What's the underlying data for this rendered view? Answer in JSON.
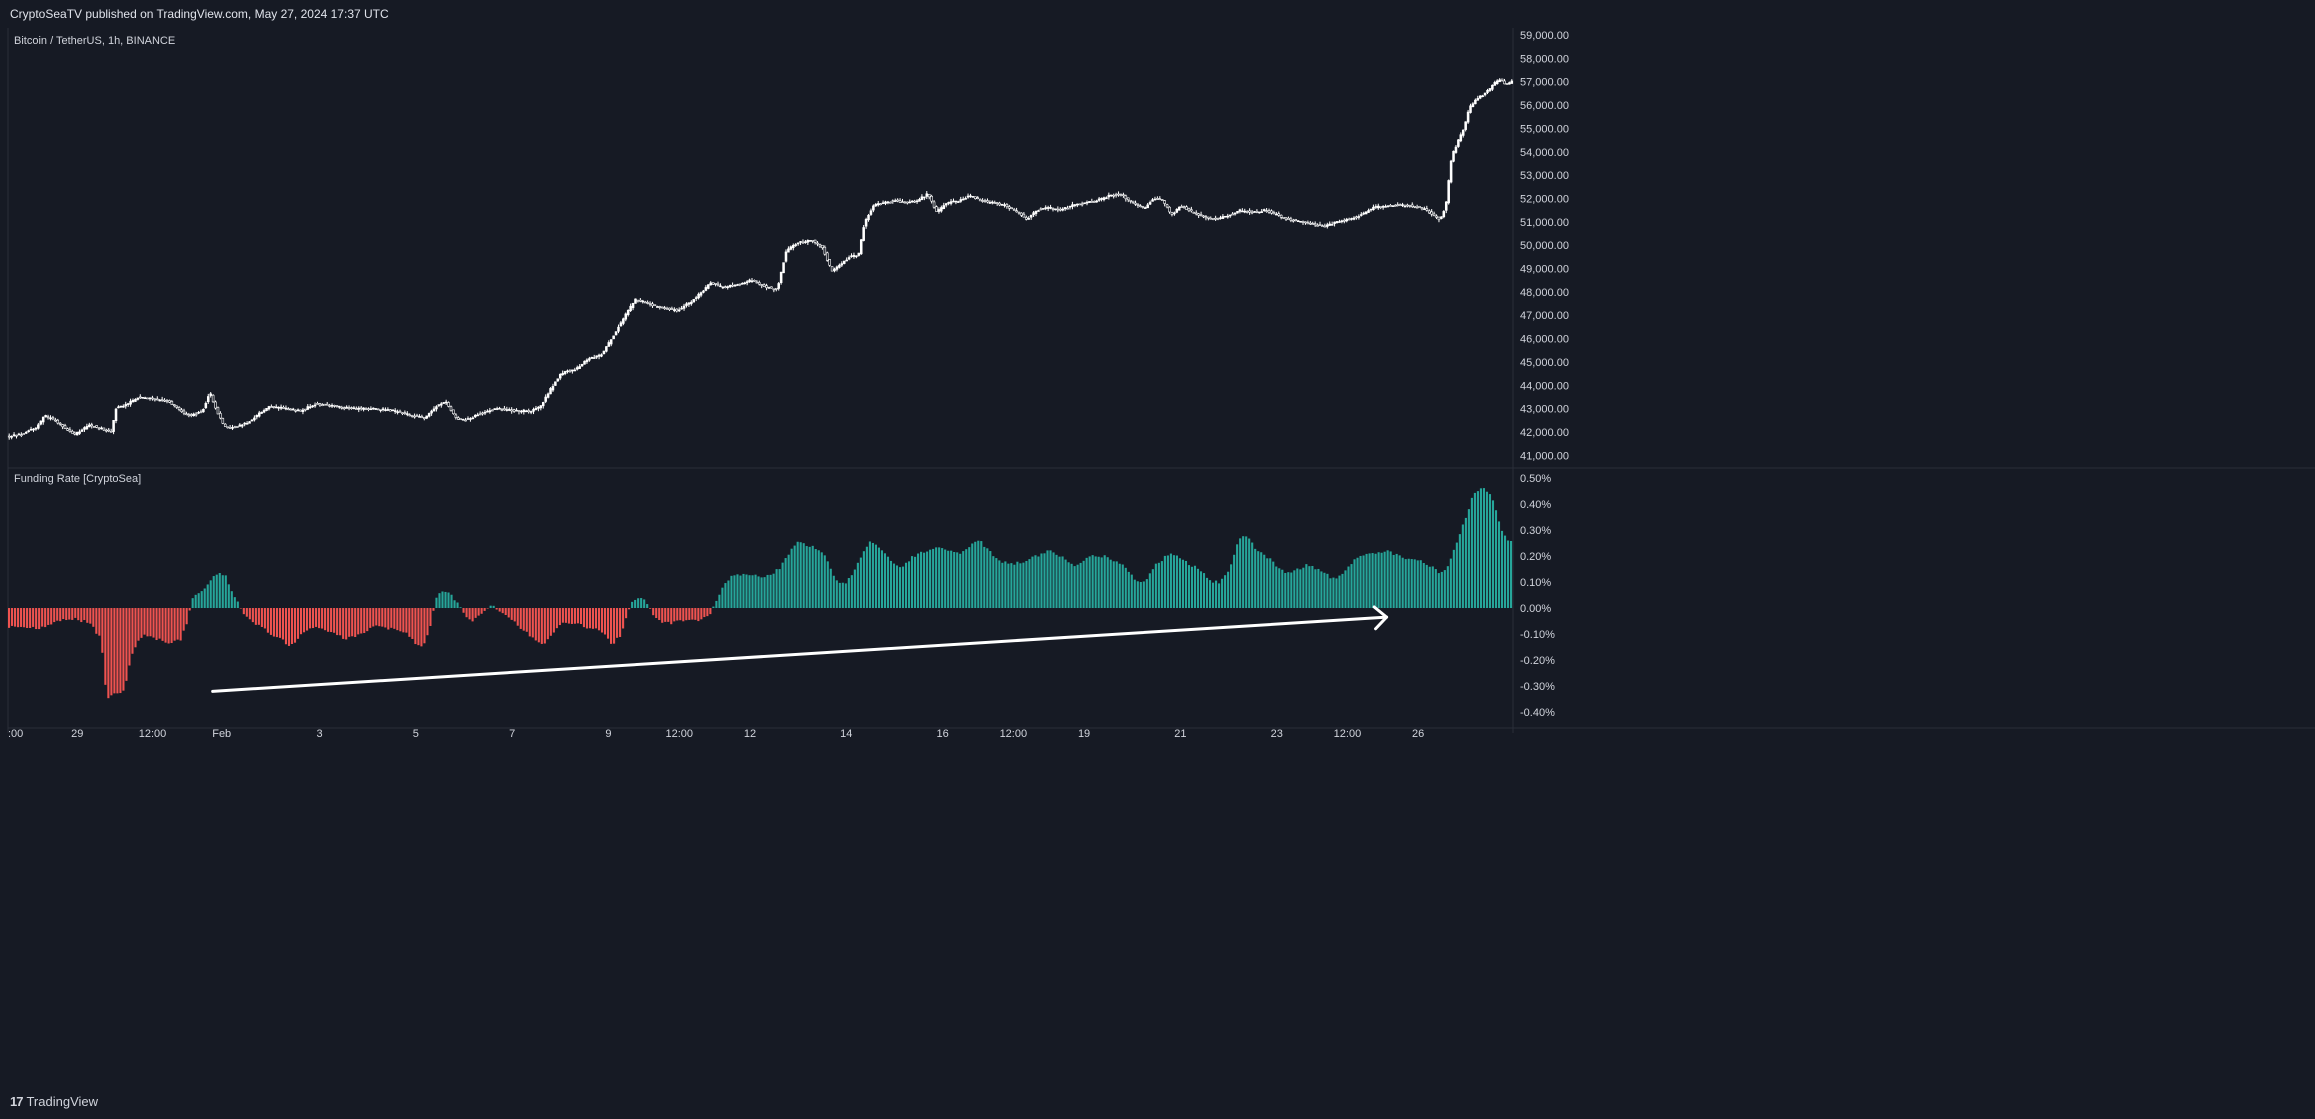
{
  "header": {
    "publisher_line": "CryptoSeaTV published on TradingView.com, May 27, 2024 17:37 UTC"
  },
  "footer": {
    "logo_mark": "17",
    "logo_text": "TradingView"
  },
  "colors": {
    "background": "#161a24",
    "pane_border": "#2a2e39",
    "text": "#d1d4dc",
    "candle": "#ffffff",
    "funding_positive": "#26a69a",
    "funding_negative": "#ef5350",
    "arrow": "#ffffff"
  },
  "chart_data": [
    {
      "type": "candlestick",
      "title": "Bitcoin / TetherUS, 1h, BINANCE",
      "ylim": [
        40500,
        59300
      ],
      "y_ticks": [
        "59,000.00",
        "58,000.00",
        "57,000.00",
        "56,000.00",
        "55,000.00",
        "54,000.00",
        "53,000.00",
        "52,000.00",
        "51,000.00",
        "50,000.00",
        "49,000.00",
        "48,000.00",
        "47,000.00",
        "46,000.00",
        "45,000.00",
        "44,000.00",
        "43,000.00",
        "42,000.00",
        "41,000.00"
      ],
      "y_tick_values": [
        59000,
        58000,
        57000,
        56000,
        55000,
        54000,
        53000,
        52000,
        51000,
        50000,
        49000,
        48000,
        47000,
        46000,
        45000,
        44000,
        43000,
        42000,
        41000
      ],
      "x_ticks": [
        ":00",
        "29",
        "12:00",
        "Feb",
        "3",
        "5",
        "7",
        "9",
        "12:00",
        "12",
        "14",
        "16",
        "12:00",
        "19",
        "21",
        "23",
        "12:00",
        "26"
      ],
      "x_tick_positions": [
        0.0,
        0.046,
        0.096,
        0.142,
        0.207,
        0.271,
        0.335,
        0.399,
        0.446,
        0.493,
        0.557,
        0.621,
        0.668,
        0.715,
        0.779,
        0.843,
        0.89,
        0.937
      ],
      "price_path": [
        [
          0.0,
          41800
        ],
        [
          0.01,
          41900
        ],
        [
          0.02,
          42200
        ],
        [
          0.025,
          42700
        ],
        [
          0.032,
          42500
        ],
        [
          0.04,
          42100
        ],
        [
          0.045,
          41900
        ],
        [
          0.055,
          42300
        ],
        [
          0.065,
          42100
        ],
        [
          0.07,
          42000
        ],
        [
          0.072,
          43000
        ],
        [
          0.08,
          43200
        ],
        [
          0.088,
          43500
        ],
        [
          0.098,
          43400
        ],
        [
          0.108,
          43300
        ],
        [
          0.115,
          42900
        ],
        [
          0.122,
          42700
        ],
        [
          0.13,
          42900
        ],
        [
          0.135,
          43700
        ],
        [
          0.14,
          42800
        ],
        [
          0.145,
          42200
        ],
        [
          0.152,
          42200
        ],
        [
          0.16,
          42400
        ],
        [
          0.168,
          42800
        ],
        [
          0.175,
          43100
        ],
        [
          0.185,
          43000
        ],
        [
          0.195,
          42900
        ],
        [
          0.205,
          43200
        ],
        [
          0.218,
          43100
        ],
        [
          0.23,
          43000
        ],
        [
          0.245,
          43000
        ],
        [
          0.258,
          42900
        ],
        [
          0.27,
          42700
        ],
        [
          0.278,
          42600
        ],
        [
          0.285,
          43100
        ],
        [
          0.292,
          43300
        ],
        [
          0.298,
          42600
        ],
        [
          0.305,
          42500
        ],
        [
          0.315,
          42800
        ],
        [
          0.325,
          43000
        ],
        [
          0.338,
          42900
        ],
        [
          0.348,
          42900
        ],
        [
          0.355,
          43100
        ],
        [
          0.36,
          43700
        ],
        [
          0.368,
          44500
        ],
        [
          0.378,
          44700
        ],
        [
          0.386,
          45100
        ],
        [
          0.395,
          45300
        ],
        [
          0.402,
          46000
        ],
        [
          0.41,
          46900
        ],
        [
          0.418,
          47700
        ],
        [
          0.426,
          47500
        ],
        [
          0.436,
          47300
        ],
        [
          0.446,
          47200
        ],
        [
          0.455,
          47600
        ],
        [
          0.462,
          48000
        ],
        [
          0.468,
          48400
        ],
        [
          0.475,
          48200
        ],
        [
          0.485,
          48300
        ],
        [
          0.495,
          48500
        ],
        [
          0.505,
          48200
        ],
        [
          0.512,
          48100
        ],
        [
          0.518,
          49800
        ],
        [
          0.525,
          50100
        ],
        [
          0.535,
          50200
        ],
        [
          0.542,
          49900
        ],
        [
          0.548,
          48900
        ],
        [
          0.554,
          49200
        ],
        [
          0.56,
          49500
        ],
        [
          0.566,
          49600
        ],
        [
          0.57,
          51000
        ],
        [
          0.576,
          51700
        ],
        [
          0.582,
          51800
        ],
        [
          0.59,
          51900
        ],
        [
          0.598,
          51800
        ],
        [
          0.605,
          51900
        ],
        [
          0.612,
          52200
        ],
        [
          0.618,
          51400
        ],
        [
          0.624,
          51800
        ],
        [
          0.632,
          51900
        ],
        [
          0.64,
          52100
        ],
        [
          0.648,
          51900
        ],
        [
          0.656,
          51800
        ],
        [
          0.664,
          51700
        ],
        [
          0.672,
          51400
        ],
        [
          0.678,
          51100
        ],
        [
          0.684,
          51500
        ],
        [
          0.692,
          51600
        ],
        [
          0.7,
          51500
        ],
        [
          0.708,
          51700
        ],
        [
          0.716,
          51800
        ],
        [
          0.724,
          51900
        ],
        [
          0.732,
          52100
        ],
        [
          0.74,
          52200
        ],
        [
          0.748,
          51800
        ],
        [
          0.756,
          51600
        ],
        [
          0.762,
          52000
        ],
        [
          0.768,
          51900
        ],
        [
          0.774,
          51300
        ],
        [
          0.78,
          51700
        ],
        [
          0.788,
          51400
        ],
        [
          0.796,
          51200
        ],
        [
          0.804,
          51100
        ],
        [
          0.812,
          51300
        ],
        [
          0.82,
          51500
        ],
        [
          0.828,
          51400
        ],
        [
          0.836,
          51500
        ],
        [
          0.844,
          51300
        ],
        [
          0.852,
          51100
        ],
        [
          0.86,
          51000
        ],
        [
          0.868,
          50900
        ],
        [
          0.876,
          50800
        ],
        [
          0.884,
          51000
        ],
        [
          0.892,
          51100
        ],
        [
          0.9,
          51300
        ],
        [
          0.908,
          51600
        ],
        [
          0.916,
          51700
        ],
        [
          0.924,
          51700
        ],
        [
          0.932,
          51700
        ],
        [
          0.94,
          51600
        ],
        [
          0.948,
          51300
        ],
        [
          0.952,
          51100
        ],
        [
          0.956,
          51600
        ],
        [
          0.96,
          53800
        ],
        [
          0.964,
          54400
        ],
        [
          0.968,
          55000
        ],
        [
          0.972,
          55900
        ],
        [
          0.976,
          56200
        ],
        [
          0.98,
          56400
        ],
        [
          0.984,
          56600
        ],
        [
          0.988,
          56900
        ],
        [
          0.992,
          57100
        ],
        [
          0.996,
          56900
        ],
        [
          1.0,
          57000
        ]
      ]
    },
    {
      "type": "bar",
      "title": "Funding Rate [CryptoSea]",
      "ylim": [
        -0.0043,
        0.0053
      ],
      "y_ticks": [
        "0.50%",
        "0.40%",
        "0.30%",
        "0.20%",
        "0.10%",
        "0.00%",
        "-0.10%",
        "-0.20%",
        "-0.30%",
        "-0.40%"
      ],
      "y_tick_values": [
        0.005,
        0.004,
        0.003,
        0.002,
        0.001,
        0.0,
        -0.001,
        -0.002,
        -0.003,
        -0.004
      ],
      "bar_profile": [
        [
          0.0,
          -0.0007
        ],
        [
          0.02,
          -0.0008
        ],
        [
          0.035,
          -0.0005
        ],
        [
          0.045,
          -0.0004
        ],
        [
          0.055,
          -0.0006
        ],
        [
          0.062,
          -0.0012
        ],
        [
          0.066,
          -0.0035
        ],
        [
          0.072,
          -0.0033
        ],
        [
          0.078,
          -0.0032
        ],
        [
          0.082,
          -0.0018
        ],
        [
          0.09,
          -0.001
        ],
        [
          0.1,
          -0.0012
        ],
        [
          0.108,
          -0.0014
        ],
        [
          0.115,
          -0.0012
        ],
        [
          0.12,
          -0.0005
        ],
        [
          0.122,
          0.0003
        ],
        [
          0.128,
          0.0006
        ],
        [
          0.134,
          0.001
        ],
        [
          0.14,
          0.0014
        ],
        [
          0.145,
          0.0012
        ],
        [
          0.152,
          0.0003
        ],
        [
          0.158,
          -0.0003
        ],
        [
          0.165,
          -0.0006
        ],
        [
          0.175,
          -0.001
        ],
        [
          0.182,
          -0.0012
        ],
        [
          0.188,
          -0.0015
        ],
        [
          0.195,
          -0.001
        ],
        [
          0.205,
          -0.0007
        ],
        [
          0.215,
          -0.0009
        ],
        [
          0.225,
          -0.0012
        ],
        [
          0.235,
          -0.001
        ],
        [
          0.245,
          -0.0007
        ],
        [
          0.255,
          -0.0008
        ],
        [
          0.265,
          -0.001
        ],
        [
          0.27,
          -0.0013
        ],
        [
          0.275,
          -0.0015
        ],
        [
          0.28,
          -0.001
        ],
        [
          0.282,
          -0.0004
        ],
        [
          0.285,
          0.0004
        ],
        [
          0.29,
          0.0007
        ],
        [
          0.295,
          0.0005
        ],
        [
          0.3,
          0.0001
        ],
        [
          0.304,
          -0.0003
        ],
        [
          0.31,
          -0.0005
        ],
        [
          0.316,
          -0.0001
        ],
        [
          0.322,
          0.0001
        ],
        [
          0.33,
          -0.0002
        ],
        [
          0.34,
          -0.0007
        ],
        [
          0.35,
          -0.0012
        ],
        [
          0.356,
          -0.0014
        ],
        [
          0.362,
          -0.001
        ],
        [
          0.37,
          -0.0005
        ],
        [
          0.378,
          -0.0006
        ],
        [
          0.388,
          -0.0008
        ],
        [
          0.396,
          -0.0009
        ],
        [
          0.402,
          -0.0014
        ],
        [
          0.408,
          -0.001
        ],
        [
          0.414,
          0.0002
        ],
        [
          0.42,
          0.0004
        ],
        [
          0.425,
          0.0002
        ],
        [
          0.43,
          -0.0004
        ],
        [
          0.438,
          -0.0006
        ],
        [
          0.448,
          -0.0005
        ],
        [
          0.458,
          -0.0005
        ],
        [
          0.466,
          -0.0003
        ],
        [
          0.47,
          0.0001
        ],
        [
          0.474,
          0.0007
        ],
        [
          0.48,
          0.0012
        ],
        [
          0.49,
          0.0013
        ],
        [
          0.5,
          0.0012
        ],
        [
          0.508,
          0.0013
        ],
        [
          0.514,
          0.0016
        ],
        [
          0.52,
          0.0022
        ],
        [
          0.526,
          0.0026
        ],
        [
          0.532,
          0.0024
        ],
        [
          0.538,
          0.0023
        ],
        [
          0.544,
          0.002
        ],
        [
          0.55,
          0.0011
        ],
        [
          0.556,
          0.0009
        ],
        [
          0.562,
          0.0013
        ],
        [
          0.568,
          0.0021
        ],
        [
          0.574,
          0.0026
        ],
        [
          0.58,
          0.0023
        ],
        [
          0.588,
          0.0017
        ],
        [
          0.594,
          0.0016
        ],
        [
          0.602,
          0.002
        ],
        [
          0.61,
          0.0022
        ],
        [
          0.618,
          0.0023
        ],
        [
          0.626,
          0.0022
        ],
        [
          0.634,
          0.0021
        ],
        [
          0.64,
          0.0024
        ],
        [
          0.646,
          0.0026
        ],
        [
          0.652,
          0.0022
        ],
        [
          0.66,
          0.0018
        ],
        [
          0.668,
          0.0017
        ],
        [
          0.676,
          0.0018
        ],
        [
          0.684,
          0.002
        ],
        [
          0.692,
          0.0022
        ],
        [
          0.7,
          0.002
        ],
        [
          0.708,
          0.0016
        ],
        [
          0.714,
          0.0018
        ],
        [
          0.72,
          0.002
        ],
        [
          0.728,
          0.002
        ],
        [
          0.736,
          0.0018
        ],
        [
          0.744,
          0.0015
        ],
        [
          0.75,
          0.001
        ],
        [
          0.756,
          0.001
        ],
        [
          0.762,
          0.0016
        ],
        [
          0.77,
          0.002
        ],
        [
          0.776,
          0.0021
        ],
        [
          0.782,
          0.0018
        ],
        [
          0.788,
          0.0016
        ],
        [
          0.794,
          0.0014
        ],
        [
          0.8,
          0.001
        ],
        [
          0.806,
          0.001
        ],
        [
          0.812,
          0.0015
        ],
        [
          0.818,
          0.0027
        ],
        [
          0.824,
          0.0028
        ],
        [
          0.83,
          0.0022
        ],
        [
          0.838,
          0.0019
        ],
        [
          0.846,
          0.0015
        ],
        [
          0.852,
          0.0013
        ],
        [
          0.858,
          0.0015
        ],
        [
          0.864,
          0.0017
        ],
        [
          0.87,
          0.0015
        ],
        [
          0.876,
          0.0013
        ],
        [
          0.882,
          0.0011
        ],
        [
          0.888,
          0.0014
        ],
        [
          0.894,
          0.0018
        ],
        [
          0.9,
          0.002
        ],
        [
          0.908,
          0.0021
        ],
        [
          0.916,
          0.0022
        ],
        [
          0.924,
          0.002
        ],
        [
          0.932,
          0.0019
        ],
        [
          0.94,
          0.0018
        ],
        [
          0.946,
          0.0016
        ],
        [
          0.952,
          0.0013
        ],
        [
          0.956,
          0.0015
        ],
        [
          0.962,
          0.0024
        ],
        [
          0.968,
          0.0033
        ],
        [
          0.974,
          0.0044
        ],
        [
          0.98,
          0.0046
        ],
        [
          0.986,
          0.0044
        ],
        [
          0.99,
          0.0035
        ],
        [
          0.994,
          0.0028
        ],
        [
          1.0,
          0.0025
        ]
      ]
    }
  ],
  "annotations": {
    "arrow": {
      "from": {
        "x_fraction": 0.136,
        "value": -0.0032
      },
      "to": {
        "x_fraction": 0.916,
        "value": -0.00035
      }
    }
  }
}
